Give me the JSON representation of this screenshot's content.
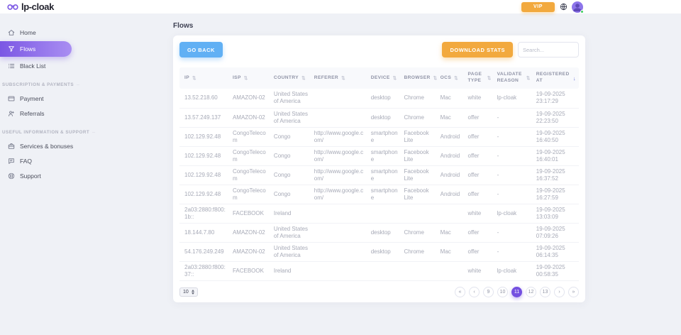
{
  "brand": {
    "name": "lp-cloak"
  },
  "topbar": {
    "vip_label": "VIP"
  },
  "sidebar": {
    "main_items": [
      {
        "label": "Home",
        "active": false
      },
      {
        "label": "Flows",
        "active": true
      },
      {
        "label": "Black List",
        "active": false
      }
    ],
    "sections": [
      {
        "title": "SUBSCRIPTION & PAYMENTS",
        "items": [
          {
            "label": "Payment"
          },
          {
            "label": "Referrals"
          }
        ]
      },
      {
        "title": "USEFUL INFORMATION & SUPPORT",
        "items": [
          {
            "label": "Services & bonuses"
          },
          {
            "label": "FAQ"
          },
          {
            "label": "Support"
          }
        ]
      }
    ]
  },
  "page": {
    "title": "Flows"
  },
  "toolbar": {
    "go_back_label": "GO BACK",
    "download_stats_label": "DOWNLOAD STATS",
    "search_placeholder": "Search..."
  },
  "table": {
    "sort_glyph": "⇅",
    "active_sort_glyph": "↓",
    "columns": [
      {
        "label": "IP"
      },
      {
        "label": "ISP"
      },
      {
        "label": "COUNTRY"
      },
      {
        "label": "REFERER"
      },
      {
        "label": "DEVICE"
      },
      {
        "label": "BROWSER"
      },
      {
        "label": "OCS"
      },
      {
        "label": "PAGE TYPE"
      },
      {
        "label": "VALIDATE REASON"
      },
      {
        "label": "REGISTERED AT",
        "sorted": "desc"
      }
    ],
    "rows": [
      [
        "13.52.218.60",
        "AMAZON-02",
        "United States of America",
        "",
        "desktop",
        "Chrome",
        "Mac",
        "white",
        "lp-cloak",
        "19-09-2025 23:17:29"
      ],
      [
        "13.57.249.137",
        "AMAZON-02",
        "United States of America",
        "",
        "desktop",
        "Chrome",
        "Mac",
        "offer",
        "-",
        "19-09-2025 22:23:50"
      ],
      [
        "102.129.92.48",
        "CongoTelecom",
        "Congo",
        "http://www.google.com/",
        "smartphone",
        "Facebook Lite",
        "Android",
        "offer",
        "-",
        "19-09-2025 16:40:50"
      ],
      [
        "102.129.92.48",
        "CongoTelecom",
        "Congo",
        "http://www.google.com/",
        "smartphone",
        "Facebook Lite",
        "Android",
        "offer",
        "-",
        "19-09-2025 16:40:01"
      ],
      [
        "102.129.92.48",
        "CongoTelecom",
        "Congo",
        "http://www.google.com/",
        "smartphone",
        "Facebook Lite",
        "Android",
        "offer",
        "-",
        "19-09-2025 16:37:52"
      ],
      [
        "102.129.92.48",
        "CongoTelecom",
        "Congo",
        "http://www.google.com/",
        "smartphone",
        "Facebook Lite",
        "Android",
        "offer",
        "-",
        "19-09-2025 16:27:59"
      ],
      [
        "2a03:2880:f800:1b::",
        "FACEBOOK",
        "Ireland",
        "",
        "",
        "",
        "",
        "white",
        "lp-cloak",
        "19-09-2025 13:03:09"
      ],
      [
        "18.144.7.80",
        "AMAZON-02",
        "United States of America",
        "",
        "desktop",
        "Chrome",
        "Mac",
        "offer",
        "-",
        "19-09-2025 07:09:26"
      ],
      [
        "54.176.249.249",
        "AMAZON-02",
        "United States of America",
        "",
        "desktop",
        "Chrome",
        "Mac",
        "offer",
        "-",
        "19-09-2025 06:14:35"
      ],
      [
        "2a03:2880:f800:37::",
        "FACEBOOK",
        "Ireland",
        "",
        "",
        "",
        "",
        "white",
        "lp-cloak",
        "19-09-2025 00:58:35"
      ]
    ]
  },
  "footer": {
    "page_size": "10",
    "pagination": [
      {
        "label": "«",
        "kind": "first"
      },
      {
        "label": "‹",
        "kind": "prev"
      },
      {
        "label": "9",
        "kind": "page"
      },
      {
        "label": "10",
        "kind": "page"
      },
      {
        "label": "11",
        "kind": "page",
        "active": true
      },
      {
        "label": "12",
        "kind": "page"
      },
      {
        "label": "13",
        "kind": "page"
      },
      {
        "label": "›",
        "kind": "next"
      },
      {
        "label": "»",
        "kind": "last"
      }
    ]
  },
  "colors": {
    "accent_purple": "#7b57e4",
    "accent_purple_light": "#a98ef2",
    "active_page": "#7450e0",
    "orange": "#f2a93e",
    "blue": "#61b0f4",
    "success_green": "#3ed060"
  }
}
